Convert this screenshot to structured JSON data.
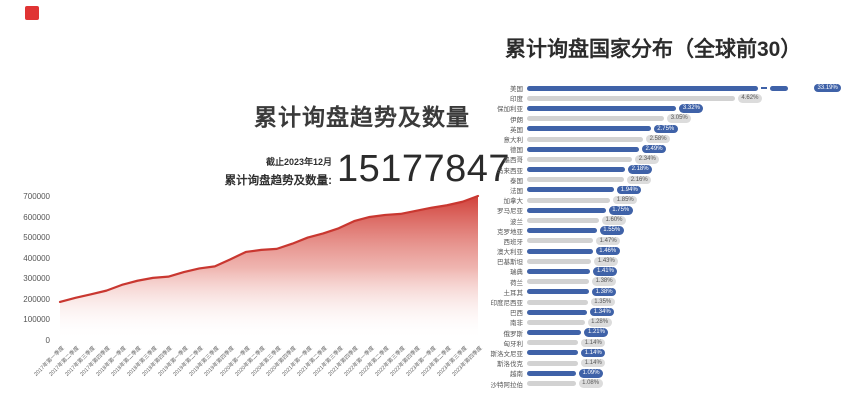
{
  "brand": {
    "logo_color": "#e03434"
  },
  "left_chart": {
    "title": "累计询盘趋势及数量",
    "asof": "截止2023年12月",
    "total_label": "累计询盘趋势及数量:",
    "total_value": "15177847",
    "line_color": "#c93730",
    "fill_top_color": "#cf3a33"
  },
  "right_chart": {
    "title": "累计询盘国家分布（全球前30）",
    "bar_blue": "#3f62a8",
    "bar_gray": "#d2d2d2"
  },
  "chart_data": [
    {
      "type": "area",
      "title": "累计询盘趋势及数量",
      "as_of": "截止2023年12月",
      "total": 15177847,
      "ylabel": "",
      "xlabel": "",
      "ylim": [
        0,
        700000
      ],
      "y_ticks": [
        0,
        100000,
        200000,
        300000,
        400000,
        500000,
        600000,
        700000
      ],
      "x": [
        "2017年第一季度",
        "2017年第二季度",
        "2017年第三季度",
        "2017年第四季度",
        "2018年第一季度",
        "2018年第二季度",
        "2018年第三季度",
        "2018年第四季度",
        "2019年第一季度",
        "2019年第二季度",
        "2019年第三季度",
        "2019年第四季度",
        "2020年第一季度",
        "2020年第二季度",
        "2020年第三季度",
        "2020年第四季度",
        "2021年第一季度",
        "2021年第二季度",
        "2021年第三季度",
        "2021年第四季度",
        "2022年第一季度",
        "2022年第二季度",
        "2022年第三季度",
        "2022年第四季度",
        "2023年第一季度",
        "2023年第二季度",
        "2023年第三季度",
        "2023年第四季度"
      ],
      "values": [
        185000,
        205000,
        222000,
        240000,
        268000,
        288000,
        302000,
        308000,
        330000,
        348000,
        358000,
        392000,
        428000,
        438000,
        443000,
        468000,
        498000,
        518000,
        543000,
        578000,
        598000,
        608000,
        613000,
        628000,
        643000,
        655000,
        672000,
        700000
      ],
      "grid": false,
      "legend": false
    },
    {
      "type": "bar",
      "orientation": "horizontal",
      "title": "累计询盘国家分布（全球前30）",
      "unit": "%",
      "axis_break_on_first_bar": true,
      "categories": [
        "美国",
        "印度",
        "保加利亚",
        "伊朗",
        "英国",
        "意大利",
        "德国",
        "墨西哥",
        "马来西亚",
        "泰国",
        "法国",
        "加拿大",
        "罗马尼亚",
        "波兰",
        "克罗地亚",
        "西班牙",
        "澳大利亚",
        "巴基斯坦",
        "瑞典",
        "荷兰",
        "土耳其",
        "印度尼西亚",
        "巴西",
        "南非",
        "俄罗斯",
        "匈牙利",
        "斯洛文尼亚",
        "斯洛伐克",
        "越南",
        "沙特阿拉伯"
      ],
      "values": [
        33.19,
        4.62,
        3.32,
        3.05,
        2.75,
        2.58,
        2.49,
        2.34,
        2.18,
        2.16,
        1.94,
        1.85,
        1.75,
        1.6,
        1.55,
        1.47,
        1.46,
        1.43,
        1.41,
        1.38,
        1.38,
        1.35,
        1.34,
        1.28,
        1.21,
        1.14,
        1.14,
        1.14,
        1.09,
        1.08
      ],
      "value_labels": [
        "33.19%",
        "4.62%",
        "3.32%",
        "3.05%",
        "2.75%",
        "2.58%",
        "2.49%",
        "2.34%",
        "2.18%",
        "2.16%",
        "1.94%",
        "1.85%",
        "1.75%",
        "1.60%",
        "1.55%",
        "1.47%",
        "1.46%",
        "1.43%",
        "1.41%",
        "1.38%",
        "1.38%",
        "1.35%",
        "1.34%",
        "1.28%",
        "1.21%",
        "1.14%",
        "1.14%",
        "1.14%",
        "1.09%",
        "1.08%"
      ],
      "legend": false
    }
  ]
}
